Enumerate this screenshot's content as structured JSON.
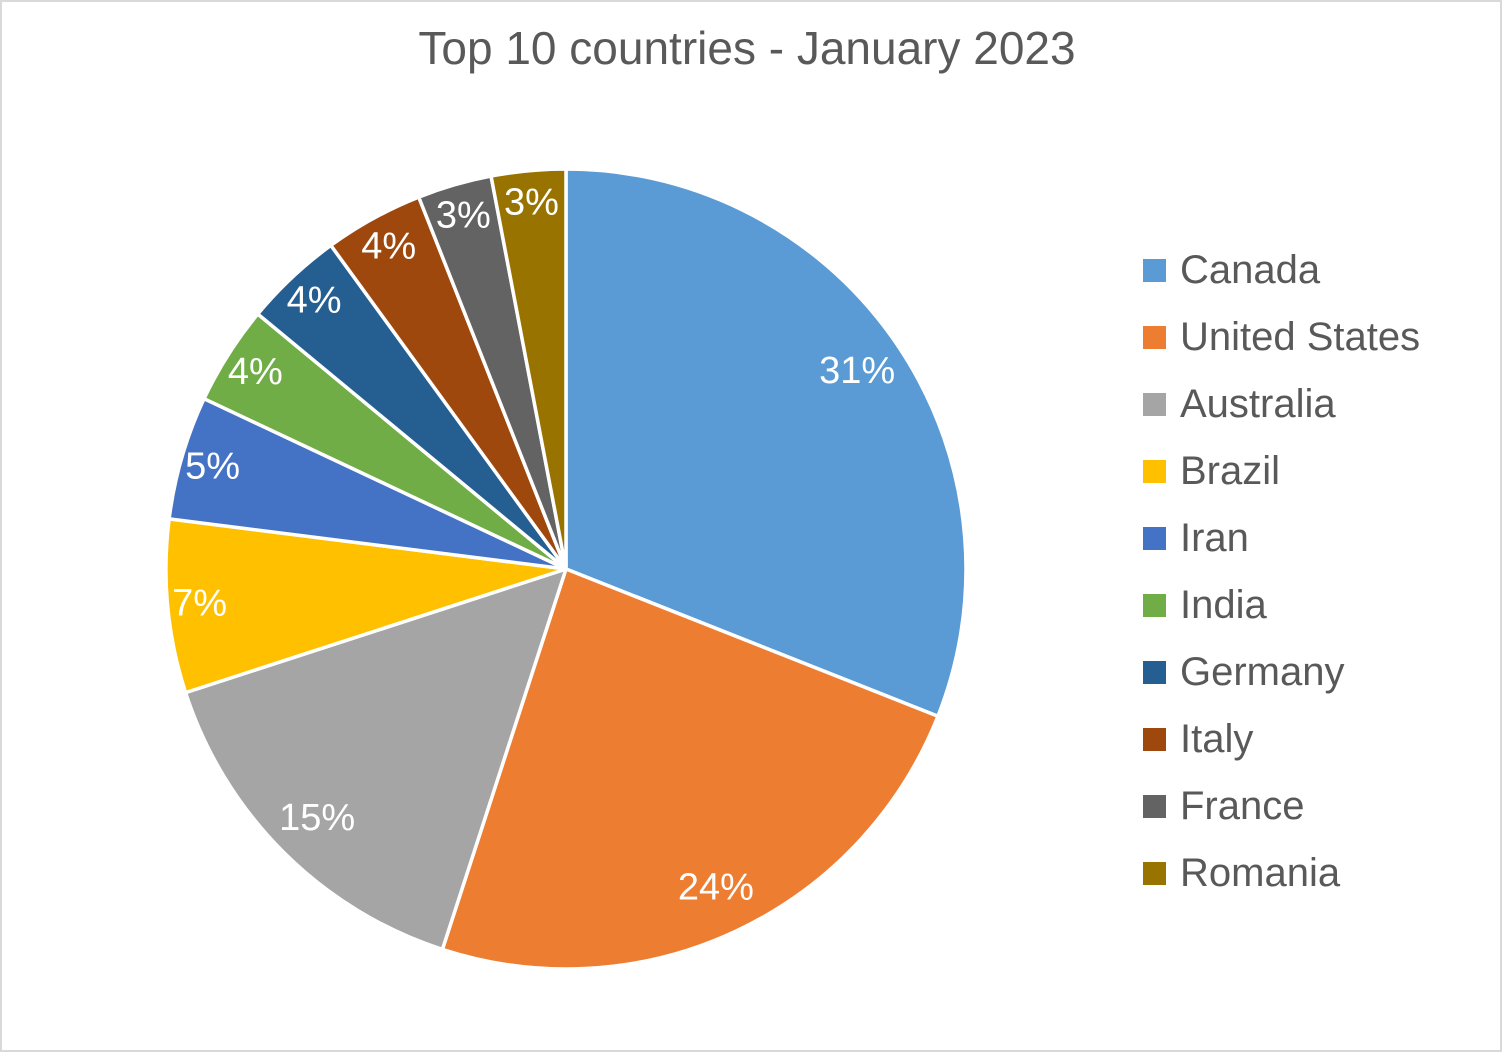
{
  "chart_data": {
    "type": "pie",
    "title": "Top 10 countries - January 2023",
    "categories": [
      "Canada",
      "United States",
      "Australia",
      "Brazil",
      "Iran",
      "India",
      "Germany",
      "Italy",
      "France",
      "Romania"
    ],
    "values": [
      31,
      24,
      15,
      7,
      5,
      4,
      4,
      4,
      3,
      3
    ],
    "data_labels": [
      "31%",
      "24%",
      "15%",
      "7%",
      "5%",
      "4%",
      "4%",
      "4%",
      "3%",
      "3%"
    ],
    "colors": [
      "#5B9BD5",
      "#ED7D31",
      "#A5A5A5",
      "#FFC000",
      "#4472C4",
      "#70AD47",
      "#255E91",
      "#9E480E",
      "#636363",
      "#997300"
    ],
    "unit": "%",
    "start_angle_deg": 0,
    "direction": "clockwise",
    "legend_position": "right",
    "grid": false
  },
  "ui": {
    "background_color": "#FFFFFF",
    "canvas_border_color": "#D9D9D9",
    "title_color": "#595959",
    "legend_text_color": "#595959",
    "data_label_color": "#FFFFFF",
    "slice_separator_color": "#FFFFFF"
  }
}
